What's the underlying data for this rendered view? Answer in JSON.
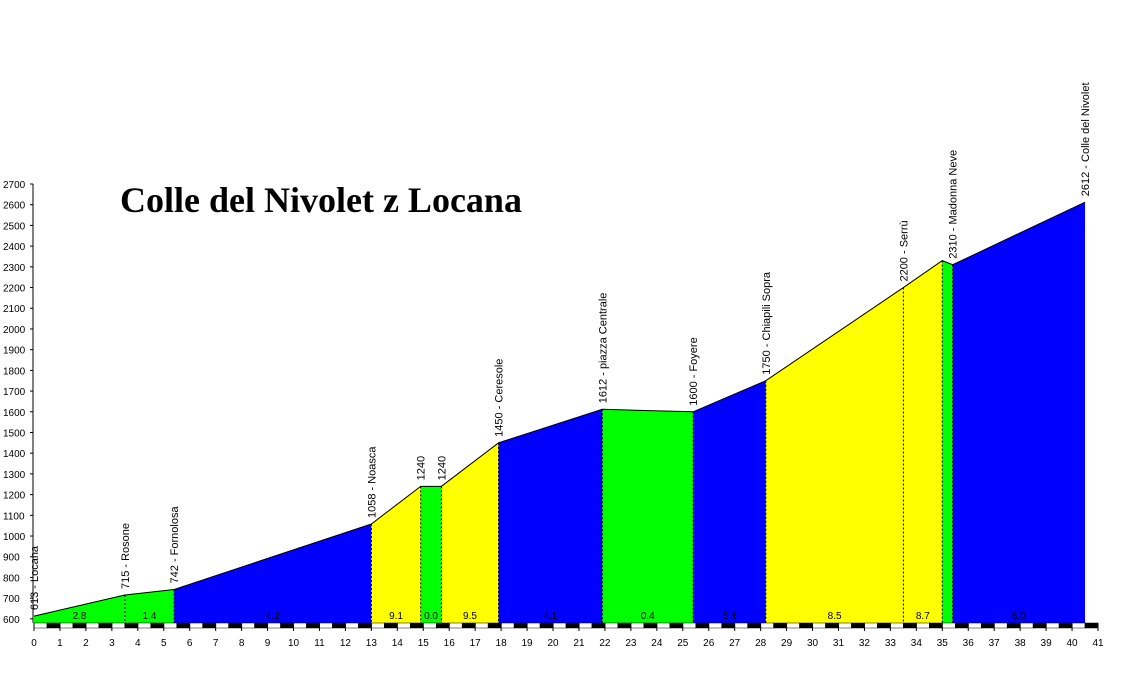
{
  "chart_data": {
    "type": "area",
    "title": "Colle del Nivolet z Locana",
    "x": [
      0,
      3.5,
      5.4,
      13,
      14.9,
      15.7,
      17.9,
      21.9,
      25.4,
      28.2,
      33.5,
      35.0,
      35.4,
      40.5
    ],
    "values": [
      613,
      715,
      742,
      1058,
      1240,
      1240,
      1450,
      1612,
      1600,
      1750,
      2200,
      2330,
      2310,
      2612
    ],
    "point_labels": [
      "613 - Locana",
      "715 - Rosone",
      "742 - Fornolosa",
      "1058 - Noasca",
      "1240",
      "1240",
      "1450 - Ceresole",
      "1612 - piazza Centrale",
      "1600 - Foyere",
      "1750 - Chiapili Sopra",
      "2200 - Serrù",
      null,
      "2310 - Madonna Neve",
      "2612 - Colle del Nivolet"
    ],
    "segment_colors": [
      "#00ff00",
      "#00ff00",
      "#0000ff",
      "#ffff00",
      "#00ff00",
      "#ffff00",
      "#0000ff",
      "#00ff00",
      "#0000ff",
      "#ffff00",
      "#ffff00",
      "#00ff00",
      "#0000ff"
    ],
    "gradients": [
      2.8,
      1.4,
      4.2,
      9.1,
      0,
      9.5,
      4.1,
      0.4,
      5.4,
      8.5,
      8.7,
      null,
      6
    ],
    "gradient_labels": [
      "2.8",
      "1.4",
      "4.2",
      "9.1",
      "0.0",
      "9.5",
      "4.1",
      "0.4",
      "5.4",
      "8.5",
      "8.7",
      null,
      "6.0"
    ],
    "xlim": [
      0,
      41
    ],
    "xticks": [
      0,
      1,
      2,
      3,
      4,
      5,
      6,
      7,
      8,
      9,
      10,
      11,
      12,
      13,
      14,
      15,
      16,
      17,
      18,
      19,
      20,
      21,
      22,
      23,
      24,
      25,
      26,
      27,
      28,
      29,
      30,
      31,
      32,
      33,
      34,
      35,
      36,
      37,
      38,
      39,
      40,
      41
    ],
    "ylim": [
      580,
      2700
    ],
    "yticks": [
      600,
      700,
      800,
      900,
      1000,
      1100,
      1200,
      1300,
      1400,
      1500,
      1600,
      1700,
      1800,
      1900,
      2000,
      2100,
      2200,
      2300,
      2400,
      2500,
      2600,
      2700
    ]
  }
}
